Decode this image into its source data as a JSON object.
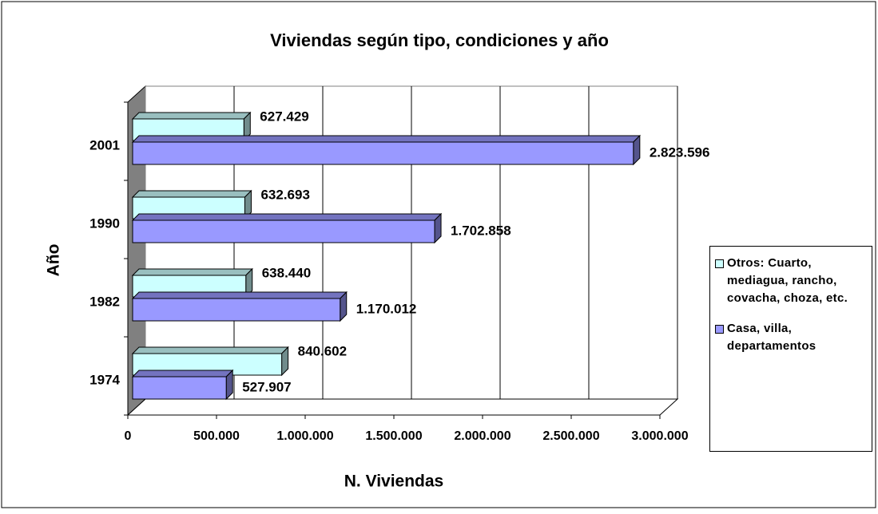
{
  "chart_data": {
    "type": "bar3d_horizontal",
    "title": "Viviendas según tipo, condiciones y año",
    "xlabel": "N. Viviendas",
    "ylabel": "Año",
    "categories": [
      "1974",
      "1982",
      "1990",
      "2001"
    ],
    "series": [
      {
        "name": "Otros: Cuarto, mediagua, rancho, covacha, choza, etc.",
        "color": "#ccffff",
        "values": [
          840602,
          638440,
          632693,
          627429
        ],
        "value_labels": [
          "840.602",
          "638.440",
          "632.693",
          "627.429"
        ]
      },
      {
        "name": "Casa, villa, departamentos",
        "color": "#9999ff",
        "values": [
          527907,
          1170012,
          1702858,
          2823596
        ],
        "value_labels": [
          "527.907",
          "1.170.012",
          "1.702.858",
          "2.823.596"
        ]
      }
    ],
    "xlim": [
      0,
      3000000
    ],
    "xticks": [
      0,
      {
        "value": 500000,
        "label": "500.000"
      },
      {
        "value": 1000000,
        "label": "1.000.000"
      },
      {
        "value": 1500000,
        "label": "1.500.000"
      },
      {
        "value": 2000000,
        "label": "2.000.000"
      },
      {
        "value": 2500000,
        "label": "2.500.000"
      },
      {
        "value": 3000000,
        "label": "3.000.000"
      }
    ],
    "grid": true,
    "legend": "right"
  }
}
